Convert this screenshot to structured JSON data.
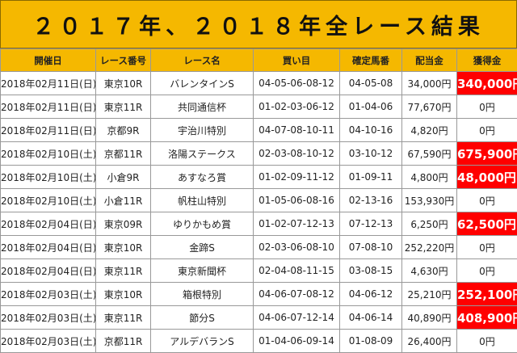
{
  "title": "２０１７年、２０１８年全レース結果",
  "columns": [
    "開催日",
    "レース番号",
    "レース名",
    "買い目",
    "確定馬番",
    "配当金",
    "獲得金"
  ],
  "rows": [
    {
      "date": "2018年02月11日(日)",
      "race_no": "東京10R",
      "race_name": "バレンタインS",
      "bet": "04-05-06-08-12",
      "result": "04-05-08",
      "payout": "34,000円",
      "earned": "340,000円",
      "win": true
    },
    {
      "date": "2018年02月11日(日)",
      "race_no": "東京11R",
      "race_name": "共同通信杯",
      "bet": "01-02-03-06-12",
      "result": "01-04-06",
      "payout": "77,670円",
      "earned": "0円",
      "win": false
    },
    {
      "date": "2018年02月11日(日)",
      "race_no": "京都9R",
      "race_name": "宇治川特別",
      "bet": "04-07-08-10-11",
      "result": "04-10-16",
      "payout": "4,820円",
      "earned": "0円",
      "win": false
    },
    {
      "date": "2018年02月10日(土)",
      "race_no": "京都11R",
      "race_name": "洛陽ステークス",
      "bet": "02-03-08-10-12",
      "result": "03-10-12",
      "payout": "67,590円",
      "earned": "675,900円",
      "win": true
    },
    {
      "date": "2018年02月10日(土)",
      "race_no": "小倉9R",
      "race_name": "あすなろ賞",
      "bet": "01-02-09-11-12",
      "result": "01-09-11",
      "payout": "4,800円",
      "earned": "48,000円",
      "win": true
    },
    {
      "date": "2018年02月10日(土)",
      "race_no": "小倉11R",
      "race_name": "帆柱山特別",
      "bet": "01-05-06-08-16",
      "result": "02-13-16",
      "payout": "153,930円",
      "earned": "0円",
      "win": false
    },
    {
      "date": "2018年02月04日(日)",
      "race_no": "東京09R",
      "race_name": "ゆりかもめ賞",
      "bet": "01-02-07-12-13",
      "result": "07-12-13",
      "payout": "6,250円",
      "earned": "62,500円",
      "win": true
    },
    {
      "date": "2018年02月04日(日)",
      "race_no": "東京10R",
      "race_name": "金蹄S",
      "bet": "02-03-06-08-10",
      "result": "07-08-10",
      "payout": "252,220円",
      "earned": "0円",
      "win": false
    },
    {
      "date": "2018年02月04日(日)",
      "race_no": "東京11R",
      "race_name": "東京新聞杯",
      "bet": "02-04-08-11-15",
      "result": "03-08-15",
      "payout": "4,630円",
      "earned": "0円",
      "win": false
    },
    {
      "date": "2018年02月03日(土)",
      "race_no": "東京10R",
      "race_name": "箱根特別",
      "bet": "04-06-07-08-12",
      "result": "04-06-12",
      "payout": "25,210円",
      "earned": "252,100円",
      "win": true
    },
    {
      "date": "2018年02月03日(土)",
      "race_no": "東京11R",
      "race_name": "節分S",
      "bet": "04-06-07-12-14",
      "result": "04-06-14",
      "payout": "40,890円",
      "earned": "408,900円",
      "win": true
    },
    {
      "date": "2018年02月03日(土)",
      "race_no": "京都11R",
      "race_name": "アルデバランS",
      "bet": "01-04-06-09-14",
      "result": "01-08-09",
      "payout": "26,400円",
      "earned": "0円",
      "win": false
    }
  ],
  "colors": {
    "header_bg": "#f5b800",
    "win_bg": "#ff0000",
    "win_text": "#ffffff"
  }
}
